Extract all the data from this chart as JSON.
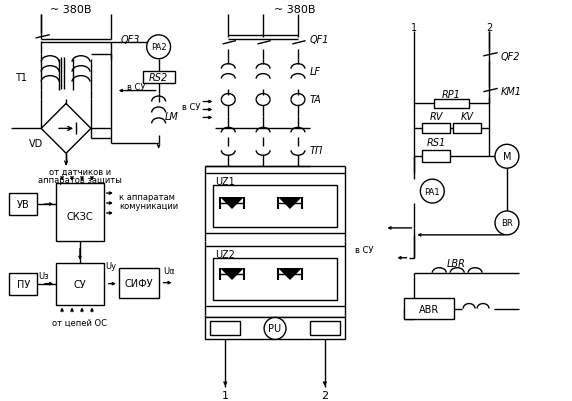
{
  "bg_color": "#ffffff",
  "labels": {
    "v380_left": "~ 380В",
    "v380_mid": "~ 380В",
    "QF3": "QF3",
    "QF1": "QF1",
    "QF2": "QF2",
    "T1": "T1",
    "VD": "VD",
    "LM": "LM",
    "PA2": "PA2",
    "RS2": "RS2",
    "e_SY": "в СУ",
    "LF": "LF",
    "TA": "TA",
    "TP": "ТП",
    "UZ1": "UZ1",
    "UZ2": "UZ2",
    "PU": "PU",
    "KM1": "KM1",
    "RP1": "RP1",
    "RV": "RV",
    "KV": "KV",
    "RS1": "RS1",
    "M": "M",
    "PA1": "PA1",
    "BR": "BR",
    "LBR": "LBR",
    "ABR": "ABR",
    "n1": "1",
    "n2": "2",
    "UV": "УВ",
    "SKZS": "СКЗС",
    "PU_bl": "ПУ",
    "SY": "СУ",
    "SIFU": "СИФУ",
    "Uz": "Uз",
    "Uy": "Uу",
    "Ua": "Uα",
    "sens1": "от датчиков и",
    "sens2": "аппаратов защиты",
    "comm1": "к аппаратам",
    "comm2": "комуникации",
    "fromOS": "от цепей ОС"
  }
}
